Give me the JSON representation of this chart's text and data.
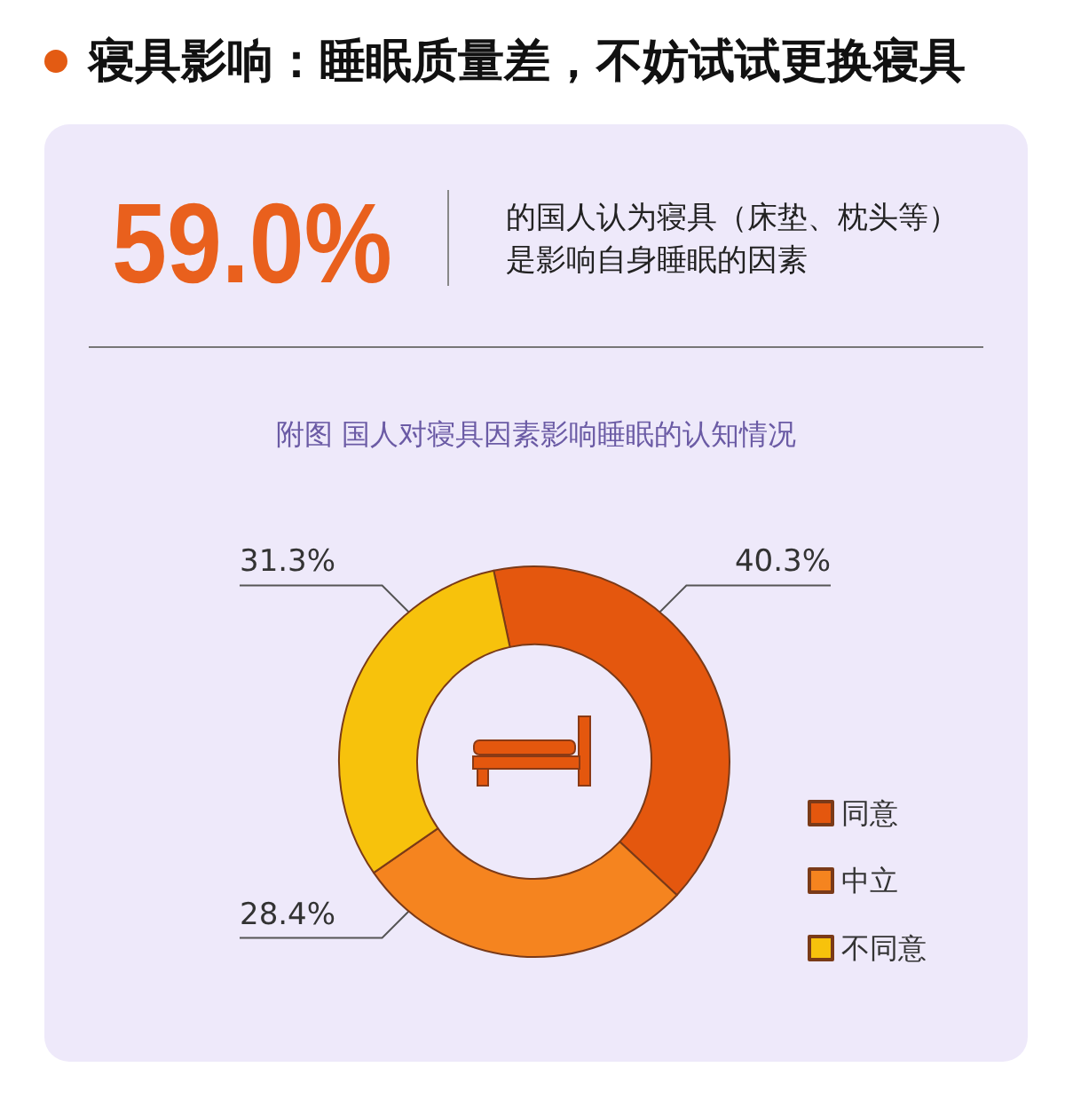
{
  "chart_data": {
    "type": "donut",
    "title": "寝具影响：睡眠质量差，不妨试试更换寝具",
    "subtitle": "附图 国人对寝具因素影响睡眠的认知情况",
    "annotations": [
      "59.0%",
      "的国人认为寝具（床垫、枕头等）",
      "是影响自身睡眠的因素"
    ],
    "categories": [
      "同意",
      "中立",
      "不同意"
    ],
    "values": [
      40.3,
      28.4,
      31.3
    ],
    "colors": [
      "#e4570e",
      "#f5841f",
      "#f7c20c"
    ],
    "value_labels": [
      "40.3%",
      "28.4%",
      "31.3%"
    ],
    "legend": "right"
  }
}
